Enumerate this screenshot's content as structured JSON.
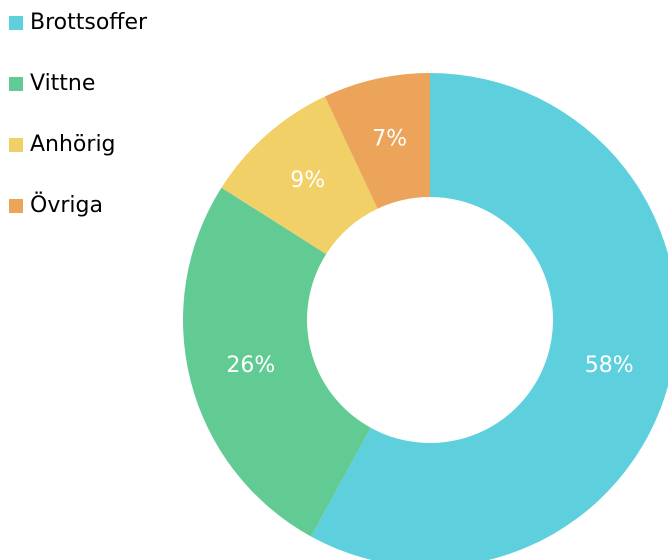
{
  "chart_data": {
    "type": "donut",
    "categories": [
      "Brottsoffer",
      "Vittne",
      "Anhörig",
      "Övriga"
    ],
    "values": [
      58,
      26,
      9,
      7
    ],
    "value_labels": [
      "58%",
      "26%",
      "9%",
      "7%"
    ],
    "colors": [
      "#5ecfdd",
      "#62cb93",
      "#f1d068",
      "#eca45a"
    ],
    "legend": "top-left"
  }
}
